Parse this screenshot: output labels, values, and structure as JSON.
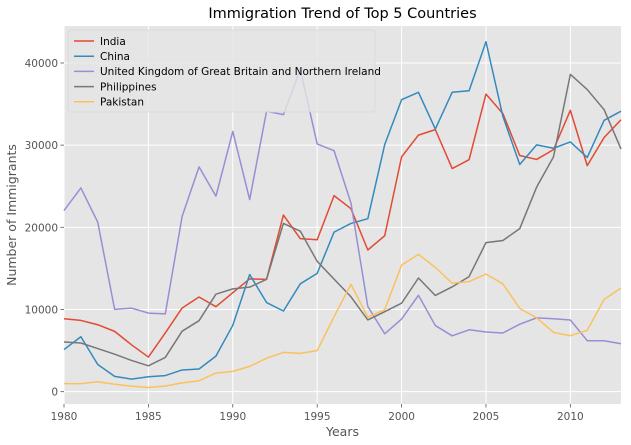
{
  "chart_data": {
    "type": "line",
    "title": "Immigration Trend of Top 5 Countries",
    "xlabel": "Years",
    "ylabel": "Number of Immigrants",
    "xlim": [
      1980,
      2013
    ],
    "ylim": [
      -1500,
      44500
    ],
    "xticks": [
      1980,
      1985,
      1990,
      1995,
      2000,
      2005,
      2010
    ],
    "yticks": [
      0,
      10000,
      20000,
      30000,
      40000
    ],
    "grid": true,
    "legend_position": "top-left",
    "x": [
      1980,
      1981,
      1982,
      1983,
      1984,
      1985,
      1986,
      1987,
      1988,
      1989,
      1990,
      1991,
      1992,
      1993,
      1994,
      1995,
      1996,
      1997,
      1998,
      1999,
      2000,
      2001,
      2002,
      2003,
      2004,
      2005,
      2006,
      2007,
      2008,
      2009,
      2010,
      2011,
      2012,
      2013
    ],
    "series": [
      {
        "name": "India",
        "color": "#E24A33",
        "values": [
          8880,
          8670,
          8147,
          7338,
          5704,
          4211,
          7150,
          10189,
          11522,
          10343,
          12041,
          13734,
          13673,
          21496,
          18620,
          18489,
          23859,
          22268,
          17241,
          18974,
          28572,
          31223,
          31889,
          27155,
          28235,
          36210,
          33848,
          28742,
          28261,
          29456,
          34235,
          27509,
          30933,
          33087
        ]
      },
      {
        "name": "China",
        "color": "#348ABD",
        "values": [
          5123,
          6682,
          3308,
          1863,
          1527,
          1816,
          1960,
          2643,
          2758,
          4323,
          8076,
          14255,
          10846,
          9817,
          13128,
          14398,
          19415,
          20475,
          21049,
          30069,
          35529,
          36434,
          31961,
          36439,
          36619,
          42584,
          33518,
          27642,
          30037,
          29622,
          30391,
          28502,
          33024,
          34129
        ]
      },
      {
        "name": "United Kingdom of Great Britain and Northern Ireland",
        "color": "#988ED5",
        "values": [
          22045,
          24796,
          20620,
          10015,
          10170,
          9564,
          9470,
          21337,
          27359,
          23795,
          31668,
          23380,
          34123,
          33720,
          39231,
          30145,
          29322,
          22965,
          10367,
          7045,
          8840,
          11728,
          8046,
          6797,
          7533,
          7258,
          7140,
          8216,
          8979,
          8876,
          8724,
          6204,
          6195,
          5827
        ]
      },
      {
        "name": "Philippines",
        "color": "#777777",
        "values": [
          6051,
          5921,
          5249,
          4562,
          3801,
          3150,
          4166,
          7360,
          8639,
          11865,
          12509,
          12718,
          13670,
          20479,
          19532,
          15864,
          13692,
          11549,
          8735,
          9734,
          10763,
          13836,
          11707,
          12758,
          14004,
          18139,
          18400,
          19837,
          24887,
          28573,
          38617,
          36765,
          34315,
          29544
        ]
      },
      {
        "name": "Pakistan",
        "color": "#FBC15E",
        "values": [
          978,
          972,
          1201,
          900,
          668,
          514,
          691,
          1072,
          1334,
          2261,
          2470,
          3079,
          4071,
          4777,
          4666,
          4994,
          9125,
          13073,
          9068,
          9979,
          15400,
          16708,
          15110,
          13205,
          13399,
          14314,
          13127,
          10124,
          8994,
          7217,
          6811,
          7468,
          11227,
          12603
        ]
      }
    ]
  }
}
